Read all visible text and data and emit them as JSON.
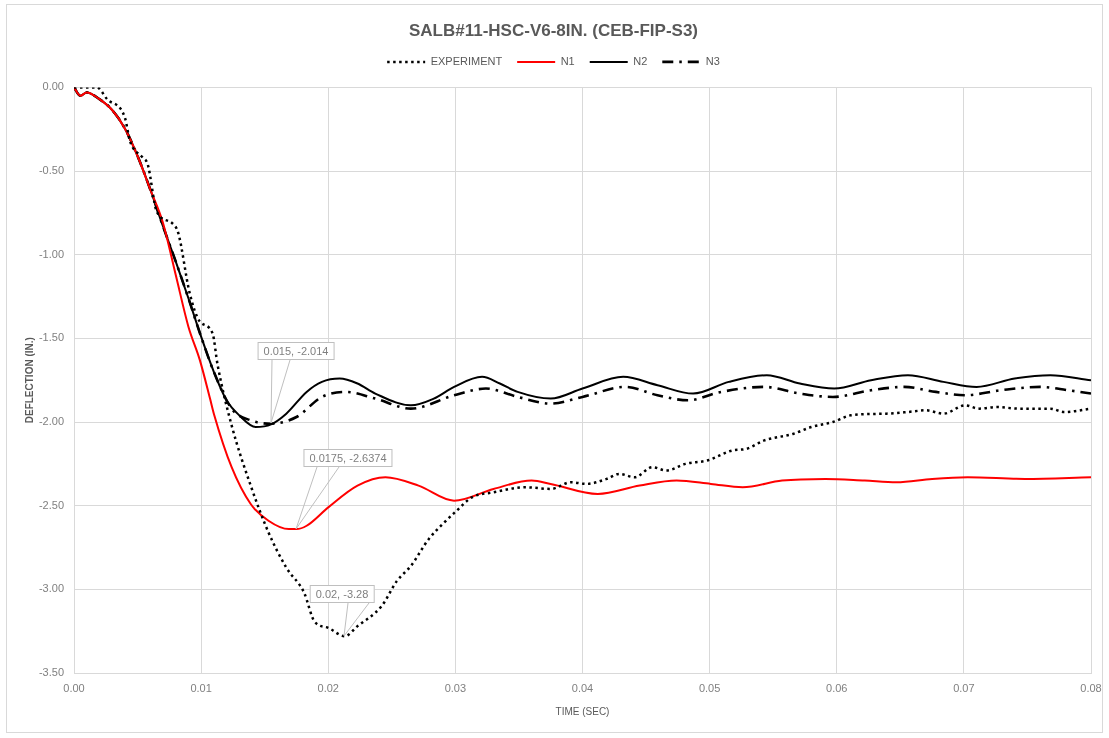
{
  "chart_data": {
    "type": "line",
    "title": "SALB#11-HSC-V6-8IN. (CEB-FIP-S3)",
    "xlabel": "TIME (SEC)",
    "ylabel": "DEFLECTION (IN.)",
    "xlim": [
      0,
      0.08
    ],
    "xticks": [
      {
        "value": 0,
        "label": "0.00"
      },
      0.01,
      0.02,
      0.03,
      0.04,
      0.05,
      0.06,
      0.07,
      0.08
    ],
    "ylim": [
      -3.5,
      0
    ],
    "yticks": [
      {
        "value": -3.5,
        "label": "-3.50"
      },
      {
        "value": -3,
        "label": "-3.00"
      },
      {
        "value": -2.5,
        "label": "-2.50"
      },
      {
        "value": -2,
        "label": "-2.00"
      },
      {
        "value": -1.5,
        "label": "-1.50"
      },
      {
        "value": -1,
        "label": "-1.00"
      },
      {
        "value": -0.5,
        "label": "-0.50"
      },
      {
        "value": 0,
        "label": "0.00"
      }
    ],
    "grid": true,
    "legend": "top",
    "marker": "none",
    "series": [
      {
        "name": "EXPERIMENT",
        "color": "#000000",
        "line_style": "dotted",
        "x": [
          0,
          0.0018,
          0.0026,
          0.004,
          0.0044,
          0.0054,
          0.0058,
          0.0065,
          0.0077,
          0.0082,
          0.0091,
          0.0099,
          0.0109,
          0.0113,
          0.0124,
          0.0139,
          0.0153,
          0.0167,
          0.0181,
          0.0189,
          0.02,
          0.0213,
          0.0223,
          0.0242,
          0.0254,
          0.0265,
          0.0279,
          0.029,
          0.0301,
          0.0313,
          0.033,
          0.0355,
          0.0375,
          0.0391,
          0.0403,
          0.0419,
          0.0429,
          0.0441,
          0.0455,
          0.0466,
          0.0481,
          0.0498,
          0.0518,
          0.0529,
          0.0543,
          0.0566,
          0.058,
          0.0597,
          0.0611,
          0.0639,
          0.0656,
          0.067,
          0.0684,
          0.0701,
          0.0712,
          0.0726,
          0.0743,
          0.0768,
          0.0779,
          0.08
        ],
        "values": [
          0,
          0,
          -0.07,
          -0.18,
          -0.32,
          -0.42,
          -0.46,
          -0.74,
          -0.81,
          -0.87,
          -1.23,
          -1.4,
          -1.47,
          -1.66,
          -2.02,
          -2.38,
          -2.66,
          -2.87,
          -3.02,
          -3.19,
          -3.23,
          -3.28,
          -3.22,
          -3.1,
          -2.95,
          -2.86,
          -2.7,
          -2.61,
          -2.53,
          -2.45,
          -2.42,
          -2.39,
          -2.4,
          -2.36,
          -2.37,
          -2.34,
          -2.31,
          -2.33,
          -2.27,
          -2.29,
          -2.25,
          -2.23,
          -2.17,
          -2.16,
          -2.11,
          -2.07,
          -2.03,
          -2.0,
          -1.96,
          -1.95,
          -1.94,
          -1.93,
          -1.95,
          -1.9,
          -1.92,
          -1.91,
          -1.92,
          -1.92,
          -1.94,
          -1.92
        ]
      },
      {
        "name": "N1",
        "color": "#ff0000",
        "line_style": "solid",
        "x": [
          0,
          0.0005,
          0.001,
          0.002,
          0.003,
          0.004,
          0.005,
          0.006,
          0.007,
          0.008,
          0.009,
          0.0099,
          0.0107,
          0.011,
          0.0124,
          0.0139,
          0.0153,
          0.0169,
          0.0175,
          0.0183,
          0.02,
          0.0223,
          0.0245,
          0.0271,
          0.0299,
          0.033,
          0.036,
          0.0375,
          0.0412,
          0.0445,
          0.0474,
          0.0501,
          0.0526,
          0.0557,
          0.0591,
          0.0622,
          0.0647,
          0.0675,
          0.0703,
          0.0748,
          0.08
        ],
        "values": [
          0,
          -0.05,
          -0.03,
          -0.07,
          -0.135,
          -0.245,
          -0.41,
          -0.61,
          -0.81,
          -1.12,
          -1.43,
          -1.63,
          -1.86,
          -1.95,
          -2.27,
          -2.49,
          -2.59,
          -2.64,
          -2.64,
          -2.62,
          -2.51,
          -2.38,
          -2.33,
          -2.38,
          -2.47,
          -2.4,
          -2.35,
          -2.37,
          -2.43,
          -2.38,
          -2.35,
          -2.37,
          -2.39,
          -2.35,
          -2.34,
          -2.35,
          -2.36,
          -2.34,
          -2.33,
          -2.34,
          -2.33
        ]
      },
      {
        "name": "N2",
        "color": "#000000",
        "line_style": "solid",
        "x": [
          0,
          0.0005,
          0.001,
          0.002,
          0.003,
          0.004,
          0.005,
          0.006,
          0.007,
          0.008,
          0.009,
          0.01,
          0.011,
          0.012,
          0.013,
          0.0143,
          0.0155,
          0.0167,
          0.0183,
          0.0195,
          0.0209,
          0.0223,
          0.0237,
          0.0265,
          0.0283,
          0.0299,
          0.0321,
          0.0335,
          0.0349,
          0.0375,
          0.04,
          0.0432,
          0.0459,
          0.0487,
          0.0515,
          0.0545,
          0.0571,
          0.0598,
          0.0627,
          0.0656,
          0.0684,
          0.071,
          0.074,
          0.0768,
          0.08
        ],
        "values": [
          0,
          -0.05,
          -0.03,
          -0.07,
          -0.135,
          -0.245,
          -0.41,
          -0.61,
          -0.83,
          -1.04,
          -1.26,
          -1.49,
          -1.7,
          -1.87,
          -1.96,
          -2.03,
          -2.014,
          -1.95,
          -1.82,
          -1.76,
          -1.74,
          -1.77,
          -1.83,
          -1.9,
          -1.86,
          -1.79,
          -1.73,
          -1.77,
          -1.82,
          -1.86,
          -1.8,
          -1.73,
          -1.78,
          -1.83,
          -1.76,
          -1.72,
          -1.77,
          -1.8,
          -1.75,
          -1.72,
          -1.76,
          -1.79,
          -1.74,
          -1.72,
          -1.75
        ]
      },
      {
        "name": "N3",
        "color": "#000000",
        "line_style": "dashdot",
        "x": [
          0,
          0.0005,
          0.001,
          0.002,
          0.003,
          0.004,
          0.005,
          0.006,
          0.007,
          0.008,
          0.009,
          0.01,
          0.011,
          0.0124,
          0.0139,
          0.0155,
          0.0175,
          0.0195,
          0.0214,
          0.0237,
          0.0265,
          0.0299,
          0.0324,
          0.0349,
          0.0375,
          0.04,
          0.0434,
          0.0459,
          0.0483,
          0.0509,
          0.0543,
          0.0571,
          0.0597,
          0.0627,
          0.0653,
          0.0678,
          0.0701,
          0.0729,
          0.076,
          0.0782,
          0.08
        ],
        "values": [
          0,
          -0.05,
          -0.03,
          -0.07,
          -0.135,
          -0.245,
          -0.41,
          -0.61,
          -0.83,
          -1.04,
          -1.26,
          -1.49,
          -1.7,
          -1.92,
          -1.99,
          -2.01,
          -1.97,
          -1.85,
          -1.82,
          -1.86,
          -1.92,
          -1.84,
          -1.8,
          -1.85,
          -1.89,
          -1.85,
          -1.79,
          -1.84,
          -1.87,
          -1.82,
          -1.79,
          -1.83,
          -1.85,
          -1.81,
          -1.79,
          -1.82,
          -1.84,
          -1.81,
          -1.79,
          -1.81,
          -1.83
        ]
      }
    ],
    "annotations": [
      "0.015, -2.014",
      "0.0175, -2.6374",
      "0.02, -3.28"
    ]
  }
}
